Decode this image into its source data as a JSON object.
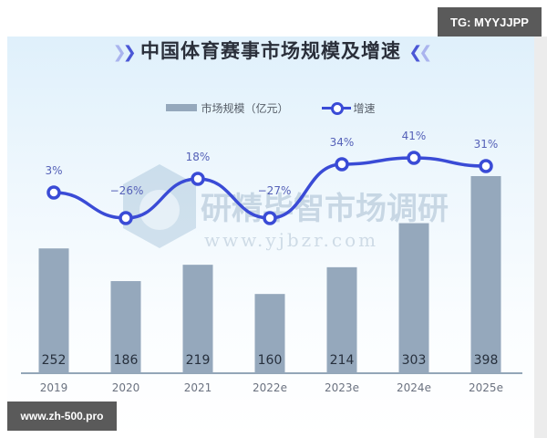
{
  "chart_data": {
    "type": "bar+line",
    "title": "中国体育赛事市场规模及增速",
    "categories": [
      "2019",
      "2020",
      "2021",
      "2022e",
      "2023e",
      "2024e",
      "2025e"
    ],
    "series": [
      {
        "name": "市场规模（亿元）",
        "type": "bar",
        "values": [
          252,
          186,
          219,
          160,
          214,
          303,
          398
        ],
        "color": "#95a8bc"
      },
      {
        "name": "增速",
        "type": "line",
        "values": [
          3,
          -26,
          18,
          -27,
          34,
          41,
          31
        ],
        "unit": "%",
        "color": "#3a4bd6"
      }
    ],
    "value_labels": [
      "252",
      "186",
      "219",
      "160",
      "214",
      "303",
      "398"
    ],
    "rate_labels": [
      "3%",
      "−26%",
      "18%",
      "−27%",
      "34%",
      "41%",
      "31%"
    ],
    "xlabel": "",
    "ylabel": "",
    "grid": false,
    "legend_position": "top"
  },
  "legend": {
    "bar_label": "市场规模（亿元）",
    "line_label": "增速"
  },
  "watermark": {
    "text": "研精毕智市场调研",
    "url": "www.yjbzr.com"
  },
  "overlays": {
    "tg_badge": "TG: MYYJJPP",
    "site_badge": "www.zh-500.pro"
  },
  "colors": {
    "bar": "#95a8bc",
    "line": "#3a4bd6",
    "label_text": "#27303d",
    "rate_text": "#5561b8",
    "axis_text": "#6b7280"
  }
}
